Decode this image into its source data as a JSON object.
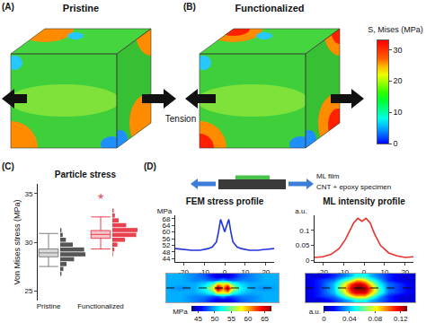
{
  "figure": {
    "panels": [
      {
        "label": "(A)",
        "title": "Pristine"
      },
      {
        "label": "(B)",
        "title": "Functionalized"
      },
      {
        "label": "(C)"
      },
      {
        "label": "(D)"
      }
    ],
    "load_label": "Tension",
    "schematic": {
      "film_label": "ML film",
      "specimen_label": "CNT + epoxy specimen"
    }
  },
  "chart_data": [
    {
      "type": "colorbar",
      "title": "S, Mises (MPa)",
      "ylim": [
        0,
        33
      ],
      "yticks": [
        0,
        10,
        20,
        30
      ]
    },
    {
      "type": "box",
      "title": "Particle stress",
      "ylabel": "Von Mises stress (MPa)",
      "categories": [
        "Pristine",
        "Functionalized"
      ],
      "colors": [
        "#7f7f7f",
        "#e8414f"
      ],
      "ylim": [
        24,
        36
      ],
      "yticks": [
        25,
        30,
        35
      ],
      "boxes": [
        {
          "q1": 28.5,
          "median": 28.9,
          "q3": 29.3,
          "lower": 27.5,
          "upper": 30.9
        },
        {
          "q1": 30.4,
          "median": 30.8,
          "q3": 31.2,
          "lower": 29.3,
          "upper": 32.6
        }
      ],
      "histograms": [
        {
          "bins": [
            26.5,
            27,
            27.5,
            28,
            28.5,
            29,
            29.5,
            30,
            30.5,
            31,
            31.5
          ],
          "counts": [
            2,
            5,
            10,
            22,
            40,
            38,
            20,
            9,
            4,
            2
          ]
        },
        {
          "bins": [
            28.5,
            29,
            29.5,
            30,
            30.5,
            31,
            31.5,
            32,
            32.5,
            33,
            33.5
          ],
          "counts": [
            1,
            3,
            8,
            20,
            38,
            40,
            22,
            10,
            4,
            2
          ]
        }
      ],
      "annotations": [
        {
          "text": "*",
          "category": "Functionalized",
          "y": 34.4
        }
      ]
    },
    {
      "type": "line",
      "title": "FEM stress profile",
      "ylabel": "MPa",
      "color": "#2233dd",
      "x": [
        -24,
        -20,
        -16,
        -12,
        -8,
        -6,
        -4,
        -3,
        -2,
        -1,
        0,
        1,
        2,
        3,
        4,
        6,
        8,
        12,
        16,
        20,
        24
      ],
      "values": [
        50,
        49.5,
        49,
        49,
        50,
        51,
        54,
        60,
        67.5,
        64,
        60,
        64,
        67.5,
        60,
        54,
        51,
        50,
        49,
        49,
        49.5,
        50
      ],
      "xlim": [
        -24,
        24
      ],
      "xticks": [
        -20,
        -10,
        0,
        10,
        20
      ],
      "ylim": [
        42,
        70
      ],
      "yticks": [
        44,
        48,
        52,
        56,
        60,
        64,
        68
      ]
    },
    {
      "type": "line",
      "title": "ML intensity profile",
      "ylabel": "a.u.",
      "color": "#e8322e",
      "x": [
        -24,
        -20,
        -16,
        -12,
        -9,
        -7,
        -5,
        -3,
        -1,
        1,
        3,
        5,
        8,
        12,
        16,
        20,
        24
      ],
      "values": [
        0.01,
        0.012,
        0.02,
        0.04,
        0.07,
        0.1,
        0.125,
        0.14,
        0.13,
        0.14,
        0.125,
        0.09,
        0.05,
        0.025,
        0.015,
        0.01,
        0.012
      ],
      "xlim": [
        -24,
        24
      ],
      "xticks": [
        -20,
        -10,
        0,
        10,
        20
      ],
      "ylim": [
        -0.005,
        0.15
      ],
      "yticks": [
        0,
        0.05,
        0.1
      ]
    },
    {
      "type": "heatmap",
      "x": [
        -24,
        -18,
        -12,
        -8,
        -4,
        -2,
        0,
        2,
        4,
        8,
        12,
        18,
        24
      ],
      "cells": [
        [
          50,
          50,
          49,
          48,
          46,
          45,
          45,
          45,
          46,
          48,
          49,
          50,
          50
        ],
        [
          50,
          50,
          49,
          49,
          48,
          48,
          50,
          48,
          48,
          49,
          49,
          50,
          50
        ],
        [
          50,
          50,
          50,
          51,
          54,
          60,
          58,
          60,
          54,
          51,
          50,
          50,
          50
        ],
        [
          50,
          49,
          50,
          52,
          58,
          68,
          61,
          68,
          58,
          52,
          50,
          49,
          50
        ],
        [
          50,
          50,
          50,
          51,
          54,
          60,
          58,
          60,
          54,
          51,
          50,
          50,
          50
        ],
        [
          50,
          50,
          49,
          49,
          48,
          48,
          50,
          48,
          48,
          49,
          49,
          50,
          50
        ],
        [
          50,
          50,
          49,
          48,
          46,
          45,
          45,
          45,
          46,
          48,
          49,
          50,
          50
        ]
      ],
      "xlim": [
        -24,
        24
      ],
      "tick_labels": false,
      "line_style": "dashed",
      "colorbar": {
        "title": "MPa",
        "range": [
          43,
          67
        ],
        "ticks": [
          45,
          50,
          55,
          60,
          65
        ]
      }
    },
    {
      "type": "heatmap",
      "x": [
        -24,
        -18,
        -12,
        -8,
        -4,
        -2,
        0,
        2,
        4,
        8,
        12,
        18,
        24
      ],
      "cells": [
        [
          0.01,
          0.01,
          0.02,
          0.03,
          0.04,
          0.05,
          0.05,
          0.05,
          0.04,
          0.03,
          0.02,
          0.01,
          0.01
        ],
        [
          0.01,
          0.02,
          0.03,
          0.05,
          0.08,
          0.09,
          0.09,
          0.09,
          0.07,
          0.04,
          0.02,
          0.01,
          0.01
        ],
        [
          0.01,
          0.02,
          0.04,
          0.07,
          0.11,
          0.12,
          0.12,
          0.12,
          0.1,
          0.06,
          0.03,
          0.02,
          0.01
        ],
        [
          0.01,
          0.02,
          0.04,
          0.08,
          0.12,
          0.13,
          0.13,
          0.13,
          0.11,
          0.06,
          0.03,
          0.02,
          0.01
        ],
        [
          0.01,
          0.02,
          0.04,
          0.07,
          0.11,
          0.12,
          0.12,
          0.11,
          0.09,
          0.05,
          0.03,
          0.02,
          0.01
        ],
        [
          0.01,
          0.02,
          0.03,
          0.05,
          0.07,
          0.09,
          0.09,
          0.08,
          0.06,
          0.04,
          0.02,
          0.01,
          0.01
        ],
        [
          0.01,
          0.01,
          0.02,
          0.03,
          0.04,
          0.05,
          0.05,
          0.05,
          0.04,
          0.03,
          0.02,
          0.01,
          0.01
        ]
      ],
      "xlim": [
        -24,
        24
      ],
      "tick_labels": false,
      "line_style": "dashed",
      "colorbar": {
        "title": "a.u.",
        "range": [
          0,
          0.13
        ],
        "ticks": [
          0,
          0.04,
          0.08,
          0.12
        ]
      }
    }
  ]
}
